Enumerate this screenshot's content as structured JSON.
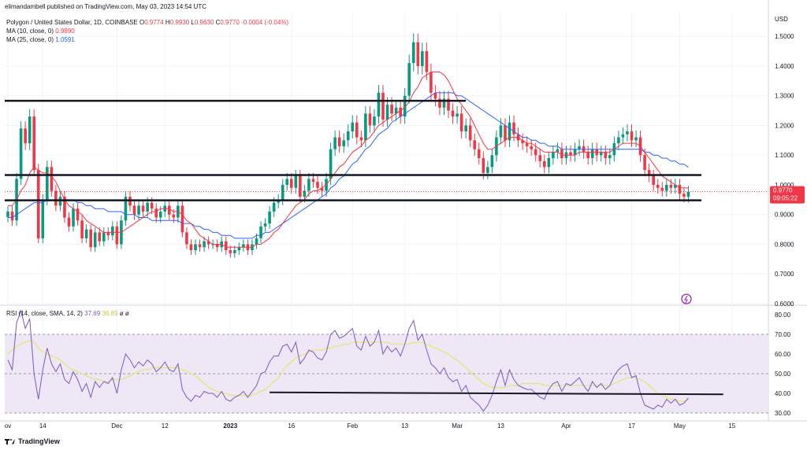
{
  "publish_line": "elimandambell published on TradingView.com, May 03, 2023 14:54 UTC",
  "legend": {
    "symbol": "Polygon / United States Dollar, 1D, COINBASE",
    "o_label": "O",
    "o": "0.9774",
    "h_label": "H",
    "h": "0.9930",
    "l_label": "L",
    "l": "0.9630",
    "c_label": "C",
    "c": "0.9770",
    "change": "-0.0004 (-0.04%)",
    "ma10_label": "MA (10, close, 0)",
    "ma10_value": "0.9890",
    "ma25_label": "MA (25, close, 0)",
    "ma25_value": "1.0591"
  },
  "rsi_legend": {
    "label": "RSI (14, close, SMA, 14, 2)",
    "rsi": "37.69",
    "rsi_ma": "36.89",
    "extra1": "ø",
    "extra2": "ø"
  },
  "footer": {
    "brand": "TradingView"
  },
  "colors": {
    "up": "#089981",
    "down": "#f23645",
    "ma10": "#f23645",
    "ma25": "#2962ff",
    "rsi": "#7e57c2",
    "rsi_ma": "#e8e47a",
    "rsi_band": "#ede7f6",
    "grid": "#f0f3fa",
    "axis_text": "#131722",
    "price_label_bg": "#f23645"
  },
  "chart_data": {
    "type": "candlestick",
    "currency_label": "USD",
    "price_ylim": [
      0.6,
      1.58
    ],
    "price_ticks": [
      "1.5000",
      "1.4000",
      "1.3000",
      "1.2000",
      "1.1000",
      "1.0000",
      "0.9000",
      "0.8000",
      "0.7000",
      "0.6000"
    ],
    "x_ticks": [
      {
        "label": "ov",
        "index": 0
      },
      {
        "label": "14",
        "index": 8
      },
      {
        "label": "Dec",
        "index": 25
      },
      {
        "label": "12",
        "index": 36
      },
      {
        "label": "2023",
        "index": 51
      },
      {
        "label": "16",
        "index": 65
      },
      {
        "label": "Feb",
        "index": 79
      },
      {
        "label": "13",
        "index": 91
      },
      {
        "label": "Mar",
        "index": 103
      },
      {
        "label": "13",
        "index": 113
      },
      {
        "label": "Apr",
        "index": 128
      },
      {
        "label": "17",
        "index": 143
      },
      {
        "label": "May",
        "index": 154
      },
      {
        "label": "15",
        "index": 166
      }
    ],
    "closes": [
      0.91,
      0.88,
      1.02,
      1.19,
      1.14,
      1.23,
      1.05,
      0.82,
      0.95,
      1.06,
      0.98,
      0.93,
      0.96,
      0.89,
      0.86,
      0.92,
      0.88,
      0.82,
      0.85,
      0.79,
      0.84,
      0.81,
      0.84,
      0.83,
      0.86,
      0.8,
      0.88,
      0.96,
      0.93,
      0.9,
      0.93,
      0.91,
      0.94,
      0.92,
      0.89,
      0.91,
      0.93,
      0.9,
      0.89,
      0.93,
      0.84,
      0.8,
      0.78,
      0.8,
      0.79,
      0.81,
      0.8,
      0.8,
      0.79,
      0.81,
      0.78,
      0.77,
      0.78,
      0.79,
      0.8,
      0.78,
      0.8,
      0.82,
      0.86,
      0.87,
      0.91,
      0.94,
      0.95,
      1.0,
      1.02,
      0.99,
      1.03,
      0.96,
      0.98,
      1.02,
      1.01,
      0.99,
      0.98,
      1.02,
      1.12,
      1.16,
      1.13,
      1.15,
      1.18,
      1.21,
      1.16,
      1.15,
      1.24,
      1.2,
      1.23,
      1.31,
      1.22,
      1.27,
      1.24,
      1.26,
      1.23,
      1.3,
      1.41,
      1.48,
      1.4,
      1.45,
      1.38,
      1.31,
      1.29,
      1.26,
      1.29,
      1.25,
      1.23,
      1.24,
      1.18,
      1.2,
      1.15,
      1.12,
      1.09,
      1.04,
      1.06,
      1.1,
      1.16,
      1.2,
      1.15,
      1.21,
      1.17,
      1.15,
      1.14,
      1.13,
      1.12,
      1.1,
      1.08,
      1.06,
      1.09,
      1.11,
      1.12,
      1.09,
      1.11,
      1.1,
      1.12,
      1.13,
      1.11,
      1.09,
      1.12,
      1.1,
      1.11,
      1.09,
      1.1,
      1.14,
      1.16,
      1.17,
      1.18,
      1.15,
      1.16,
      1.1,
      1.05,
      1.03,
      1.0,
      0.99,
      0.98,
      1.0,
      0.99,
      1.0,
      0.97,
      0.96,
      0.977
    ],
    "ma10": [
      0.93,
      0.93,
      0.95,
      0.98,
      1.0,
      1.04,
      1.06,
      1.05,
      1.04,
      1.04,
      1.03,
      1.01,
      0.98,
      0.95,
      0.93,
      0.92,
      0.91,
      0.9,
      0.88,
      0.87,
      0.86,
      0.85,
      0.84,
      0.84,
      0.84,
      0.84,
      0.84,
      0.85,
      0.86,
      0.87,
      0.88,
      0.89,
      0.9,
      0.91,
      0.91,
      0.92,
      0.92,
      0.92,
      0.91,
      0.91,
      0.9,
      0.88,
      0.87,
      0.85,
      0.83,
      0.82,
      0.81,
      0.8,
      0.8,
      0.8,
      0.79,
      0.79,
      0.79,
      0.79,
      0.79,
      0.79,
      0.79,
      0.8,
      0.8,
      0.81,
      0.82,
      0.84,
      0.85,
      0.87,
      0.89,
      0.91,
      0.93,
      0.94,
      0.95,
      0.97,
      0.98,
      0.98,
      0.99,
      1.0,
      1.02,
      1.04,
      1.06,
      1.07,
      1.09,
      1.11,
      1.12,
      1.13,
      1.15,
      1.16,
      1.18,
      1.2,
      1.21,
      1.22,
      1.23,
      1.24,
      1.25,
      1.26,
      1.28,
      1.31,
      1.33,
      1.36,
      1.37,
      1.38,
      1.38,
      1.38,
      1.37,
      1.35,
      1.32,
      1.29,
      1.27,
      1.25,
      1.23,
      1.2,
      1.17,
      1.14,
      1.12,
      1.12,
      1.13,
      1.14,
      1.15,
      1.16,
      1.16,
      1.16,
      1.15,
      1.14,
      1.14,
      1.13,
      1.12,
      1.11,
      1.11,
      1.11,
      1.11,
      1.1,
      1.1,
      1.1,
      1.1,
      1.11,
      1.11,
      1.11,
      1.11,
      1.11,
      1.11,
      1.11,
      1.11,
      1.12,
      1.13,
      1.14,
      1.14,
      1.14,
      1.14,
      1.13,
      1.11,
      1.09,
      1.07,
      1.05,
      1.03,
      1.02,
      1.01,
      1.0,
      0.99,
      0.99,
      0.989
    ],
    "ma25": [
      0.89,
      0.89,
      0.9,
      0.91,
      0.92,
      0.93,
      0.94,
      0.94,
      0.94,
      0.95,
      0.95,
      0.95,
      0.95,
      0.95,
      0.95,
      0.95,
      0.94,
      0.94,
      0.93,
      0.93,
      0.92,
      0.92,
      0.92,
      0.91,
      0.91,
      0.91,
      0.91,
      0.9,
      0.9,
      0.9,
      0.89,
      0.89,
      0.89,
      0.88,
      0.88,
      0.88,
      0.88,
      0.88,
      0.88,
      0.88,
      0.87,
      0.87,
      0.87,
      0.86,
      0.86,
      0.85,
      0.85,
      0.84,
      0.84,
      0.83,
      0.83,
      0.83,
      0.82,
      0.82,
      0.82,
      0.82,
      0.82,
      0.83,
      0.83,
      0.84,
      0.84,
      0.85,
      0.86,
      0.87,
      0.88,
      0.89,
      0.9,
      0.91,
      0.92,
      0.93,
      0.94,
      0.95,
      0.96,
      0.97,
      0.99,
      1.0,
      1.02,
      1.03,
      1.05,
      1.07,
      1.08,
      1.1,
      1.12,
      1.13,
      1.15,
      1.17,
      1.18,
      1.19,
      1.21,
      1.22,
      1.23,
      1.24,
      1.25,
      1.26,
      1.27,
      1.28,
      1.29,
      1.3,
      1.31,
      1.31,
      1.31,
      1.31,
      1.31,
      1.3,
      1.3,
      1.29,
      1.28,
      1.27,
      1.26,
      1.25,
      1.24,
      1.23,
      1.22,
      1.21,
      1.2,
      1.19,
      1.18,
      1.17,
      1.16,
      1.16,
      1.15,
      1.15,
      1.14,
      1.14,
      1.13,
      1.13,
      1.13,
      1.12,
      1.12,
      1.12,
      1.12,
      1.12,
      1.12,
      1.12,
      1.12,
      1.12,
      1.12,
      1.12,
      1.12,
      1.12,
      1.12,
      1.12,
      1.12,
      1.12,
      1.12,
      1.12,
      1.11,
      1.11,
      1.1,
      1.1,
      1.09,
      1.09,
      1.08,
      1.08,
      1.07,
      1.07,
      1.059
    ],
    "levels": [
      {
        "price": 1.283,
        "from_index": 0,
        "to_index": 105
      },
      {
        "price": 1.033,
        "from_index": 0,
        "to_index": 159
      },
      {
        "price": 0.948,
        "from_index": 0,
        "to_index": 159
      }
    ],
    "current_price_label": "0.9770",
    "countdown_label": "09:05:22",
    "rsi": {
      "ylim": [
        28,
        84
      ],
      "ticks": [
        "80.00",
        "70.00",
        "60.00",
        "50.00",
        "40.00",
        "30.00"
      ],
      "band": [
        30,
        70
      ],
      "values": [
        57,
        52,
        76,
        82,
        73,
        78,
        50,
        37,
        52,
        63,
        55,
        51,
        55,
        47,
        45,
        51,
        47,
        41,
        45,
        38,
        46,
        43,
        46,
        45,
        48,
        40,
        52,
        60,
        57,
        53,
        56,
        54,
        57,
        55,
        51,
        53,
        56,
        52,
        51,
        55,
        42,
        38,
        36,
        39,
        38,
        41,
        40,
        40,
        38,
        41,
        37,
        36,
        38,
        39,
        41,
        38,
        41,
        44,
        50,
        51,
        56,
        59,
        59,
        64,
        65,
        61,
        66,
        55,
        58,
        62,
        61,
        58,
        57,
        61,
        70,
        72,
        68,
        69,
        71,
        73,
        64,
        62,
        69,
        64,
        66,
        72,
        60,
        64,
        61,
        63,
        59,
        65,
        73,
        77,
        67,
        70,
        62,
        55,
        53,
        50,
        53,
        48,
        46,
        47,
        41,
        44,
        38,
        36,
        34,
        31,
        34,
        39,
        46,
        52,
        44,
        52,
        47,
        44,
        43,
        42,
        42,
        40,
        38,
        37,
        42,
        45,
        46,
        41,
        45,
        44,
        46,
        48,
        44,
        41,
        46,
        43,
        45,
        42,
        44,
        49,
        52,
        54,
        55,
        48,
        49,
        40,
        34,
        33,
        32,
        34,
        33,
        37,
        35,
        37,
        34,
        35,
        37.69
      ],
      "ma": [
        60,
        62,
        64,
        65,
        66,
        67,
        66,
        63,
        61,
        60,
        59,
        58,
        57,
        55,
        53,
        52,
        51,
        50,
        49,
        48,
        47,
        47,
        46,
        46,
        47,
        47,
        47,
        48,
        49,
        50,
        51,
        52,
        52,
        53,
        53,
        53,
        53,
        53,
        53,
        53,
        52,
        51,
        50,
        49,
        47,
        45,
        43,
        42,
        41,
        40,
        40,
        39,
        39,
        39,
        39,
        39,
        39,
        40,
        41,
        42,
        44,
        46,
        48,
        51,
        54,
        56,
        58,
        59,
        60,
        61,
        62,
        62,
        62,
        63,
        63,
        64,
        64,
        65,
        65,
        66,
        66,
        66,
        66,
        66,
        66,
        66,
        66,
        66,
        65,
        65,
        65,
        65,
        65,
        66,
        66,
        66,
        65,
        64,
        63,
        62,
        61,
        60,
        58,
        57,
        55,
        53,
        51,
        49,
        47,
        45,
        44,
        43,
        43,
        43,
        43,
        44,
        44,
        44,
        45,
        45,
        45,
        45,
        45,
        44,
        44,
        44,
        44,
        44,
        44,
        44,
        44,
        44,
        44,
        44,
        44,
        44,
        44,
        44,
        44,
        45,
        46,
        47,
        48,
        48,
        48,
        47,
        46,
        44,
        42,
        40,
        39,
        38,
        37,
        37,
        36,
        36,
        36.89
      ],
      "trendline": {
        "from": [
          60,
          40.5
        ],
        "to": [
          164,
          39.5
        ]
      }
    }
  }
}
